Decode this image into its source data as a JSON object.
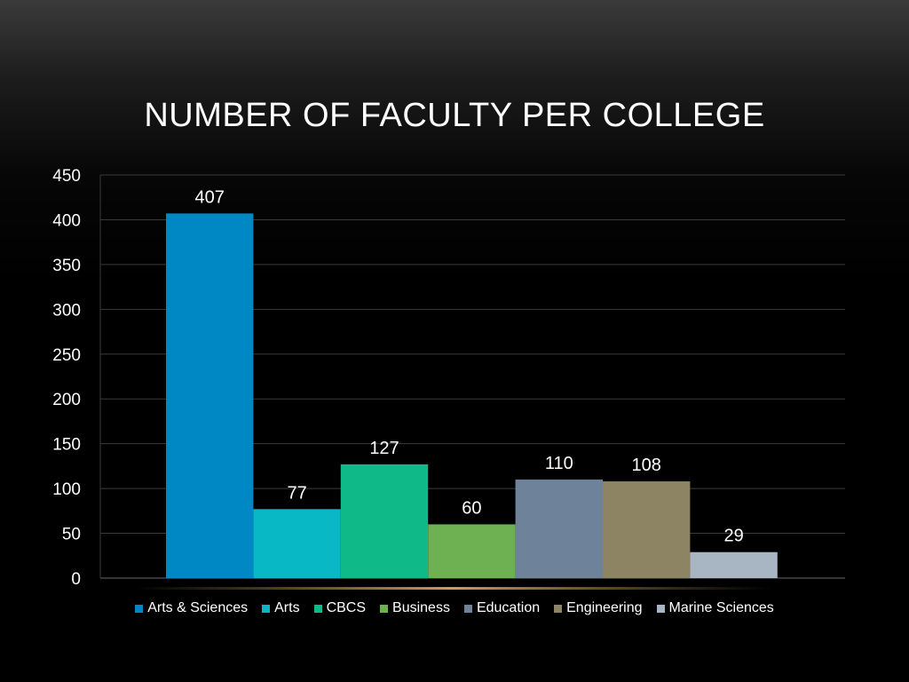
{
  "slide": {
    "title": "NUMBER OF FACULTY PER COLLEGE"
  },
  "chart_data": {
    "type": "bar",
    "title": "NUMBER OF FACULTY PER COLLEGE",
    "xlabel": "",
    "ylabel": "",
    "categories": [
      "Arts & Sciences",
      "Arts",
      "CBCS",
      "Business",
      "Education",
      "Engineering",
      "Marine Sciences"
    ],
    "values": [
      407,
      77,
      127,
      60,
      110,
      108,
      29
    ],
    "colors": [
      "#0088c4",
      "#08b8c4",
      "#0fba88",
      "#6db153",
      "#6e8299",
      "#8c8462",
      "#a8b6c4"
    ],
    "ylim": [
      0,
      450
    ],
    "yticks": [
      0,
      50,
      100,
      150,
      200,
      250,
      300,
      350,
      400,
      450
    ],
    "grid": true,
    "legend": "bottom",
    "data_labels": true
  }
}
